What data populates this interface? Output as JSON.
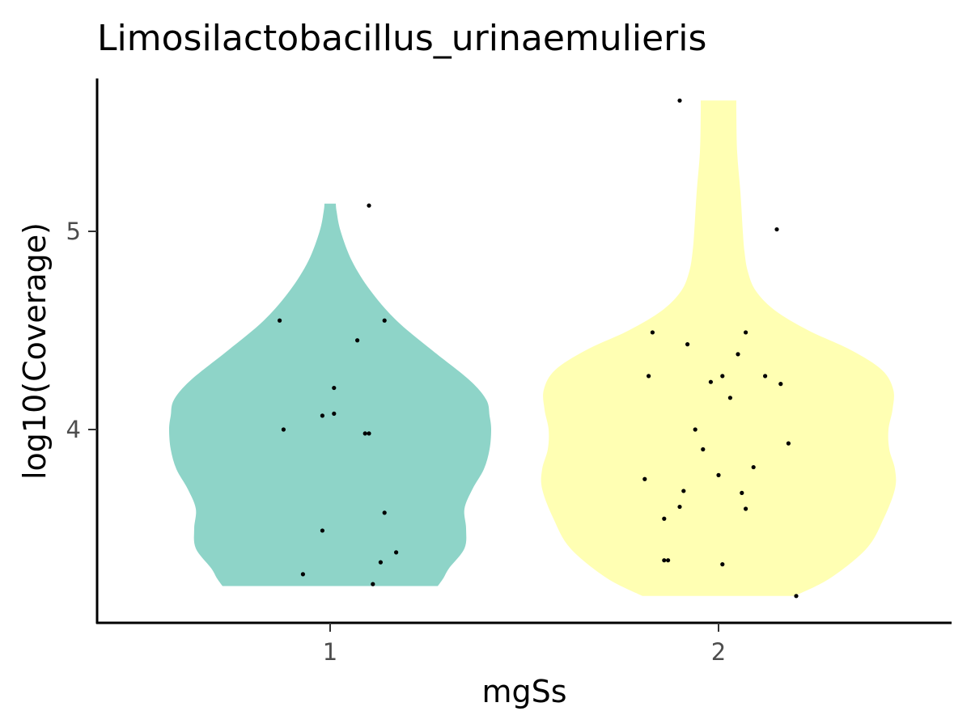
{
  "chart_data": {
    "type": "violin",
    "title": "Limosilactobacillus_urinaemulieris",
    "xlabel": "mgSs",
    "ylabel": "log10(Coverage)",
    "categories": [
      "1",
      "2"
    ],
    "y_ticks": [
      "4",
      "5"
    ],
    "ylim": [
      3.04,
      5.74
    ],
    "grid": false,
    "legend": "none",
    "colors": {
      "1": "#8ED4C8",
      "2": "#FFFFB3"
    },
    "series": [
      {
        "category": "1",
        "points": [
          {
            "x": 0.87,
            "y": 4.55
          },
          {
            "x": 0.88,
            "y": 4.0
          },
          {
            "x": 0.98,
            "y": 4.07
          },
          {
            "x": 1.01,
            "y": 4.21
          },
          {
            "x": 1.01,
            "y": 4.08
          },
          {
            "x": 1.07,
            "y": 4.45
          },
          {
            "x": 1.09,
            "y": 3.98
          },
          {
            "x": 1.1,
            "y": 3.98
          },
          {
            "x": 1.1,
            "y": 5.13
          },
          {
            "x": 1.14,
            "y": 4.55
          },
          {
            "x": 1.14,
            "y": 3.58
          },
          {
            "x": 0.98,
            "y": 3.49
          },
          {
            "x": 0.93,
            "y": 3.27
          },
          {
            "x": 1.13,
            "y": 3.33
          },
          {
            "x": 1.17,
            "y": 3.38
          },
          {
            "x": 1.11,
            "y": 3.22
          }
        ]
      },
      {
        "category": "2",
        "points": [
          {
            "x": 1.9,
            "y": 5.66
          },
          {
            "x": 2.15,
            "y": 5.01
          },
          {
            "x": 1.83,
            "y": 4.49
          },
          {
            "x": 1.92,
            "y": 4.43
          },
          {
            "x": 2.07,
            "y": 4.49
          },
          {
            "x": 2.05,
            "y": 4.38
          },
          {
            "x": 1.82,
            "y": 4.27
          },
          {
            "x": 1.98,
            "y": 4.24
          },
          {
            "x": 2.01,
            "y": 4.27
          },
          {
            "x": 2.12,
            "y": 4.27
          },
          {
            "x": 2.16,
            "y": 4.23
          },
          {
            "x": 2.03,
            "y": 4.16
          },
          {
            "x": 1.94,
            "y": 4.0
          },
          {
            "x": 1.96,
            "y": 3.9
          },
          {
            "x": 2.18,
            "y": 3.93
          },
          {
            "x": 2.09,
            "y": 3.81
          },
          {
            "x": 2.0,
            "y": 3.77
          },
          {
            "x": 1.81,
            "y": 3.75
          },
          {
            "x": 1.91,
            "y": 3.69
          },
          {
            "x": 2.06,
            "y": 3.68
          },
          {
            "x": 1.9,
            "y": 3.61
          },
          {
            "x": 2.07,
            "y": 3.6
          },
          {
            "x": 1.86,
            "y": 3.55
          },
          {
            "x": 1.86,
            "y": 3.34
          },
          {
            "x": 1.87,
            "y": 3.34
          },
          {
            "x": 2.01,
            "y": 3.32
          },
          {
            "x": 2.2,
            "y": 3.16
          }
        ]
      }
    ]
  }
}
